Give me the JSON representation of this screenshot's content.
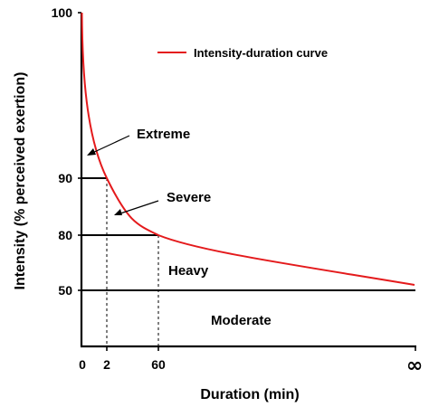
{
  "chart_data": {
    "type": "line",
    "title": "",
    "xlabel": "Duration (min)",
    "ylabel": "Intensity (% perceived exertion)",
    "x_tick_labels": [
      "0",
      "2",
      "60",
      "∞"
    ],
    "y_tick_labels": [
      "50",
      "80",
      "90",
      "100"
    ],
    "series": [
      {
        "name": "Intensity-duration curve",
        "color": "#e41a1c",
        "points": [
          {
            "x": "0",
            "y": 100
          },
          {
            "x": "2",
            "y": 90
          },
          {
            "x": "60",
            "y": 80
          },
          {
            "x": "∞",
            "y": 50
          }
        ]
      }
    ],
    "thresholds": [
      50,
      80,
      90
    ],
    "zones": [
      {
        "label": "Extreme"
      },
      {
        "label": "Severe"
      },
      {
        "label": "Heavy"
      },
      {
        "label": "Moderate"
      }
    ],
    "legend": {
      "position": "top-right",
      "label": "Intensity-duration curve"
    },
    "grid": false
  }
}
